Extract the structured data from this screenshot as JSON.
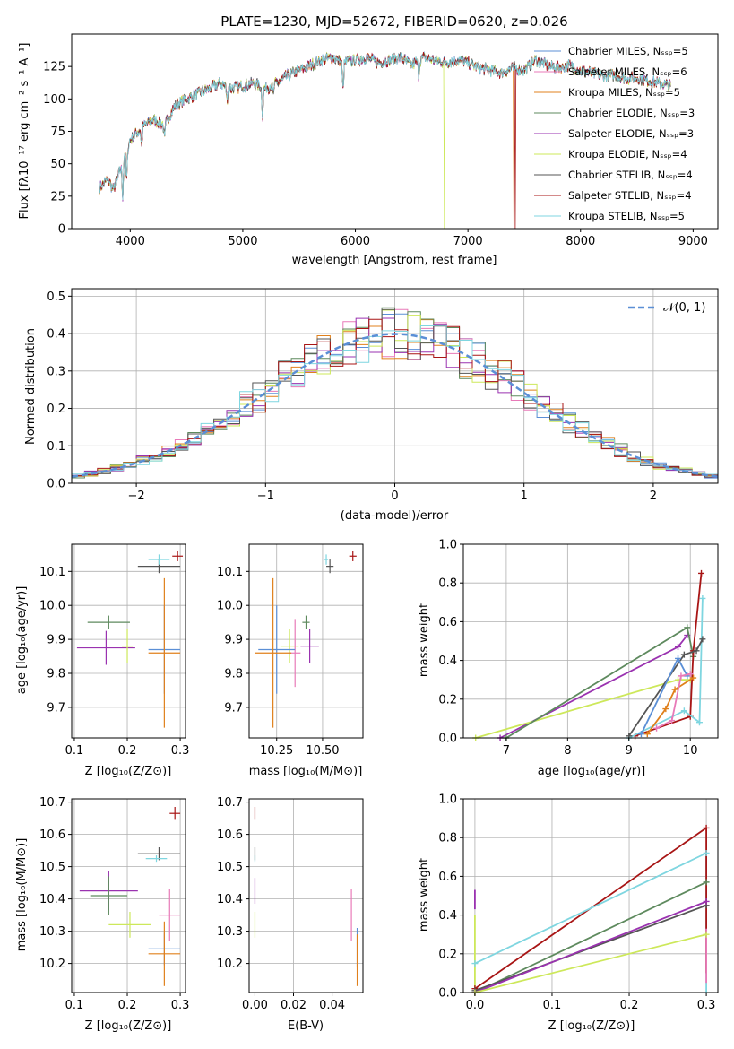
{
  "colors": {
    "Chabrier MILES": "#5b8fd6",
    "Salpeter MILES": "#e87ab8",
    "Kroupa MILES": "#e0801c",
    "Chabrier ELODIE": "#5e8a5e",
    "Salpeter ELODIE": "#9a32b0",
    "Kroupa ELODIE": "#cde85a",
    "Chabrier STELIB": "#555555",
    "Salpeter STELIB": "#a81515",
    "Kroupa STELIB": "#7fd6e0"
  },
  "chart_data": [
    {
      "id": "spectrum",
      "type": "line",
      "title": "PLATE=1230, MJD=52672, FIBERID=0620, z=0.026",
      "xlabel": "wavelength [Angstrom, rest frame]",
      "ylabel": "Flux [fλ10⁻¹⁷ erg cm⁻² s⁻¹ A⁻¹]",
      "xlim": [
        3480,
        9220
      ],
      "ylim": [
        0,
        150
      ],
      "xticks": [
        4000,
        5000,
        6000,
        7000,
        8000,
        9000
      ],
      "yticks": [
        0,
        25,
        50,
        75,
        100,
        125
      ],
      "grid": false,
      "legend_position": "right",
      "continuum": [
        [
          3730,
          32
        ],
        [
          3800,
          38
        ],
        [
          3850,
          30
        ],
        [
          3900,
          42
        ],
        [
          3950,
          58
        ],
        [
          4000,
          68
        ],
        [
          4100,
          78
        ],
        [
          4200,
          84
        ],
        [
          4300,
          80
        ],
        [
          4400,
          95
        ],
        [
          4500,
          100
        ],
        [
          4600,
          104
        ],
        [
          4700,
          108
        ],
        [
          4800,
          112
        ],
        [
          4900,
          108
        ],
        [
          5000,
          110
        ],
        [
          5100,
          112
        ],
        [
          5200,
          108
        ],
        [
          5300,
          112
        ],
        [
          5400,
          118
        ],
        [
          5500,
          122
        ],
        [
          5600,
          126
        ],
        [
          5700,
          130
        ],
        [
          5800,
          132
        ],
        [
          5900,
          128
        ],
        [
          6000,
          130
        ],
        [
          6100,
          132
        ],
        [
          6200,
          128
        ],
        [
          6300,
          130
        ],
        [
          6400,
          132
        ],
        [
          6500,
          126
        ],
        [
          6600,
          132
        ],
        [
          6700,
          130
        ],
        [
          6800,
          128
        ],
        [
          6900,
          130
        ],
        [
          7000,
          128
        ],
        [
          7100,
          124
        ],
        [
          7200,
          122
        ],
        [
          7300,
          120
        ],
        [
          7400,
          124
        ],
        [
          7500,
          122
        ],
        [
          7600,
          130
        ],
        [
          7700,
          126
        ],
        [
          7800,
          124
        ],
        [
          7900,
          126
        ],
        [
          8000,
          122
        ],
        [
          8100,
          120
        ],
        [
          8200,
          118
        ],
        [
          8300,
          118
        ],
        [
          8400,
          116
        ],
        [
          8500,
          116
        ],
        [
          8600,
          114
        ],
        [
          8700,
          112
        ],
        [
          8800,
          110
        ]
      ],
      "absorption": [
        [
          3933,
          28
        ],
        [
          3968,
          25
        ],
        [
          4101,
          14
        ],
        [
          4305,
          12
        ],
        [
          4861,
          10
        ],
        [
          5175,
          22
        ],
        [
          5270,
          8
        ],
        [
          5890,
          22
        ],
        [
          6563,
          12
        ]
      ],
      "series": [
        {
          "name": "Chabrier MILES, Nₛₛₚ=5",
          "drop_at": null
        },
        {
          "name": "Salpeter MILES, Nₛₛₚ=6",
          "drop_at": null
        },
        {
          "name": "Kroupa MILES, Nₛₛₚ=5",
          "drop_at": 7410
        },
        {
          "name": "Chabrier ELODIE, Nₛₛₚ=3",
          "drop_at": null
        },
        {
          "name": "Salpeter ELODIE, Nₛₛₚ=3",
          "drop_at": null
        },
        {
          "name": "Kroupa ELODIE, Nₛₛₚ=4",
          "drop_at": 6790
        },
        {
          "name": "Chabrier STELIB, Nₛₛₚ=4",
          "drop_at": null
        },
        {
          "name": "Salpeter STELIB, Nₛₛₚ=4",
          "drop_at": 7420
        },
        {
          "name": "Kroupa STELIB, Nₛₛₚ=5",
          "drop_at": null
        }
      ]
    },
    {
      "id": "residual-hist",
      "type": "bar",
      "xlabel": "(data-model)/error",
      "ylabel": "Normed distribution",
      "xlim": [
        -2.5,
        2.5
      ],
      "ylim": [
        0,
        0.52
      ],
      "xticks": [
        -2,
        -1,
        0,
        1,
        2
      ],
      "yticks": [
        0.0,
        0.1,
        0.2,
        0.3,
        0.4,
        0.5
      ],
      "grid": true,
      "bin_width": 0.1,
      "reference": {
        "name": "𝒩(0, 1)",
        "mean": 0,
        "sigma": 1
      },
      "legend_position": "top-right"
    },
    {
      "id": "age-vs-Z",
      "type": "scatter",
      "xlabel": "Z [log₁₀(Z/Z⊙)]",
      "ylabel": "age  [log₁₀(age/yr)]",
      "xlim": [
        0.095,
        0.31
      ],
      "ylim": [
        9.61,
        10.18
      ],
      "xticks": [
        0.1,
        0.2,
        0.3
      ],
      "yticks": [
        9.7,
        9.8,
        9.9,
        10.0,
        10.1
      ],
      "grid": true,
      "points": [
        {
          "series": "Chabrier STELIB",
          "x": 0.26,
          "y": 10.115,
          "xerr": 0.04,
          "yerr": 0.02
        },
        {
          "series": "Kroupa STELIB",
          "x": 0.26,
          "y": 10.135,
          "xerr": 0.02,
          "yerr": 0.015
        },
        {
          "series": "Salpeter STELIB",
          "x": 0.295,
          "y": 10.145,
          "xerr": 0.01,
          "yerr": 0.015
        },
        {
          "series": "Chabrier ELODIE",
          "x": 0.165,
          "y": 9.95,
          "xerr": 0.04,
          "yerr": 0.02
        },
        {
          "series": "Salpeter ELODIE",
          "x": 0.16,
          "y": 9.875,
          "xerr": 0.055,
          "yerr": 0.05
        },
        {
          "series": "Kroupa ELODIE",
          "x": 0.2,
          "y": 9.88,
          "xerr": 0.01,
          "yerr": 0.05
        },
        {
          "series": "Chabrier MILES",
          "x": 0.27,
          "y": 9.87,
          "xerr": 0.03,
          "yerr": 0.13
        },
        {
          "series": "Kroupa MILES",
          "x": 0.27,
          "y": 9.86,
          "xerr": 0.03,
          "yerr": 0.22
        }
      ]
    },
    {
      "id": "age-vs-mass",
      "type": "scatter",
      "xlabel": "mass [log₁₀(M/M⊙)]",
      "ylabel": "",
      "xlim": [
        10.1,
        10.72
      ],
      "ylim": [
        9.61,
        10.18
      ],
      "xticks": [
        10.25,
        10.5
      ],
      "yticks": [
        9.7,
        9.8,
        9.9,
        10.0,
        10.1
      ],
      "grid": true,
      "points": [
        {
          "series": "Kroupa STELIB",
          "x": 10.52,
          "y": 10.135,
          "xerr": 0.01,
          "yerr": 0.015
        },
        {
          "series": "Chabrier STELIB",
          "x": 10.54,
          "y": 10.115,
          "xerr": 0.02,
          "yerr": 0.02
        },
        {
          "series": "Salpeter STELIB",
          "x": 10.665,
          "y": 10.145,
          "xerr": 0.02,
          "yerr": 0.015
        },
        {
          "series": "Chabrier ELODIE",
          "x": 10.41,
          "y": 9.95,
          "xerr": 0.02,
          "yerr": 0.02
        },
        {
          "series": "Salpeter ELODIE",
          "x": 10.43,
          "y": 9.88,
          "xerr": 0.05,
          "yerr": 0.05
        },
        {
          "series": "Kroupa ELODIE",
          "x": 10.32,
          "y": 9.88,
          "xerr": 0.05,
          "yerr": 0.05
        },
        {
          "series": "Salpeter MILES",
          "x": 10.35,
          "y": 9.86,
          "xerr": 0.03,
          "yerr": 0.1
        },
        {
          "series": "Chabrier MILES",
          "x": 10.25,
          "y": 9.87,
          "xerr": 0.1,
          "yerr": 0.13
        },
        {
          "series": "Kroupa MILES",
          "x": 10.23,
          "y": 9.86,
          "xerr": 0.1,
          "yerr": 0.22
        }
      ]
    },
    {
      "id": "mass-weight-vs-age",
      "type": "line",
      "xlabel": "age  [log₁₀(age/yr)]",
      "ylabel": "mass weight",
      "xlim": [
        6.3,
        10.45
      ],
      "ylim": [
        0,
        1.0
      ],
      "xticks": [
        7,
        8,
        9,
        10
      ],
      "yticks": [
        0.0,
        0.2,
        0.4,
        0.6,
        0.8,
        1.0
      ],
      "grid": true,
      "series": [
        {
          "series": "Salpeter ELODIE",
          "points": [
            [
              6.9,
              0.0
            ],
            [
              9.8,
              0.47
            ],
            [
              9.95,
              0.53
            ]
          ]
        },
        {
          "series": "Kroupa ELODIE",
          "points": [
            [
              6.5,
              0.0
            ],
            [
              9.8,
              0.3
            ],
            [
              10.0,
              0.3
            ]
          ]
        },
        {
          "series": "Chabrier ELODIE",
          "points": [
            [
              7.0,
              0.0
            ],
            [
              9.95,
              0.57
            ],
            [
              10.05,
              0.42
            ]
          ]
        },
        {
          "series": "Salpeter STELIB",
          "points": [
            [
              9.1,
              0.01
            ],
            [
              10.0,
              0.11
            ],
            [
              10.05,
              0.45
            ],
            [
              10.18,
              0.85
            ]
          ]
        },
        {
          "series": "Kroupa STELIB",
          "points": [
            [
              9.0,
              0.0
            ],
            [
              9.9,
              0.14
            ],
            [
              10.15,
              0.08
            ],
            [
              10.2,
              0.72
            ]
          ]
        },
        {
          "series": "Chabrier STELIB",
          "points": [
            [
              9.0,
              0.01
            ],
            [
              9.9,
              0.43
            ],
            [
              10.1,
              0.45
            ],
            [
              10.2,
              0.51
            ]
          ]
        },
        {
          "series": "Chabrier MILES",
          "points": [
            [
              9.2,
              0.02
            ],
            [
              9.8,
              0.41
            ],
            [
              9.95,
              0.32
            ]
          ]
        },
        {
          "series": "Kroupa MILES",
          "points": [
            [
              9.3,
              0.02
            ],
            [
              9.6,
              0.15
            ],
            [
              9.75,
              0.25
            ],
            [
              10.05,
              0.31
            ]
          ]
        },
        {
          "series": "Salpeter MILES",
          "points": [
            [
              9.45,
              0.05
            ],
            [
              9.7,
              0.09
            ],
            [
              9.85,
              0.32
            ],
            [
              10.0,
              0.33
            ]
          ]
        }
      ]
    },
    {
      "id": "mass-vs-Z",
      "type": "scatter",
      "xlabel": "Z [log₁₀(Z/Z⊙)]",
      "ylabel": "mass [log₁₀(M/M⊙)]",
      "xlim": [
        0.095,
        0.31
      ],
      "ylim": [
        10.11,
        10.71
      ],
      "xticks": [
        0.1,
        0.2,
        0.3
      ],
      "yticks": [
        10.2,
        10.3,
        10.4,
        10.5,
        10.6,
        10.7
      ],
      "grid": true,
      "points": [
        {
          "series": "Salpeter STELIB",
          "x": 0.29,
          "y": 10.665,
          "xerr": 0.01,
          "yerr": 0.02
        },
        {
          "series": "Chabrier STELIB",
          "x": 0.26,
          "y": 10.54,
          "xerr": 0.04,
          "yerr": 0.02
        },
        {
          "series": "Kroupa STELIB",
          "x": 0.255,
          "y": 10.525,
          "xerr": 0.02,
          "yerr": 0.01
        },
        {
          "series": "Salpeter ELODIE",
          "x": 0.165,
          "y": 10.425,
          "xerr": 0.055,
          "yerr": 0.06
        },
        {
          "series": "Chabrier ELODIE",
          "x": 0.165,
          "y": 10.41,
          "xerr": 0.035,
          "yerr": 0.06
        },
        {
          "series": "Kroupa ELODIE",
          "x": 0.205,
          "y": 10.32,
          "xerr": 0.04,
          "yerr": 0.04
        },
        {
          "series": "Salpeter MILES",
          "x": 0.28,
          "y": 10.35,
          "xerr": 0.02,
          "yerr": 0.08
        },
        {
          "series": "Chabrier MILES",
          "x": 0.27,
          "y": 10.245,
          "xerr": 0.03,
          "yerr": 0.05
        },
        {
          "series": "Kroupa MILES",
          "x": 0.27,
          "y": 10.23,
          "xerr": 0.03,
          "yerr": 0.1
        }
      ]
    },
    {
      "id": "mass-vs-ebv",
      "type": "scatter",
      "xlabel": "E(B-V)",
      "ylabel": "",
      "xlim": [
        -0.003,
        0.056
      ],
      "ylim": [
        10.11,
        10.71
      ],
      "xticks": [
        0.0,
        0.02,
        0.04
      ],
      "xticklabels": [
        "0.00",
        "0.02",
        "0.04"
      ],
      "yticks": [
        10.2,
        10.3,
        10.4,
        10.5,
        10.6,
        10.7
      ],
      "grid": true,
      "points": [
        {
          "series": "Salpeter STELIB",
          "x": 0.0,
          "y": 10.665,
          "xerr": 0,
          "yerr": 0.02
        },
        {
          "series": "Chabrier STELIB",
          "x": 0.0,
          "y": 10.54,
          "xerr": 0,
          "yerr": 0.02
        },
        {
          "series": "Kroupa STELIB",
          "x": 0.0,
          "y": 10.525,
          "xerr": 0,
          "yerr": 0.01
        },
        {
          "series": "Salpeter ELODIE",
          "x": 0.0,
          "y": 10.425,
          "xerr": 0,
          "yerr": 0.04
        },
        {
          "series": "Kroupa ELODIE",
          "x": 0.0,
          "y": 10.32,
          "xerr": 0,
          "yerr": 0.04
        },
        {
          "series": "Salpeter MILES",
          "x": 0.05,
          "y": 10.35,
          "xerr": 0,
          "yerr": 0.08
        },
        {
          "series": "Chabrier MILES",
          "x": 0.053,
          "y": 10.25,
          "xerr": 0,
          "yerr": 0.06
        },
        {
          "series": "Kroupa MILES",
          "x": 0.053,
          "y": 10.21,
          "xerr": 0,
          "yerr": 0.08
        }
      ]
    },
    {
      "id": "mass-weight-vs-Z",
      "type": "line",
      "xlabel": "Z [log₁₀(Z/Z⊙)]",
      "ylabel": "mass weight",
      "xlim": [
        -0.015,
        0.315
      ],
      "ylim": [
        0,
        1.0
      ],
      "xticks": [
        0.0,
        0.1,
        0.2,
        0.3
      ],
      "xticklabels": [
        "0.0",
        "0.1",
        "0.2",
        "0.3"
      ],
      "yticks": [
        0.0,
        0.2,
        0.4,
        0.6,
        0.8,
        1.0
      ],
      "grid": true,
      "series": [
        {
          "series": "Salpeter STELIB",
          "points": [
            [
              0.0,
              0.02
            ],
            [
              0.3,
              0.85
            ]
          ]
        },
        {
          "series": "Kroupa STELIB",
          "points": [
            [
              0.0,
              0.15
            ],
            [
              0.3,
              0.72
            ]
          ]
        },
        {
          "series": "Chabrier ELODIE",
          "points": [
            [
              0.0,
              0.0
            ],
            [
              0.3,
              0.57
            ]
          ]
        },
        {
          "series": "Chabrier STELIB",
          "points": [
            [
              0.0,
              0.01
            ],
            [
              0.3,
              0.45
            ]
          ]
        },
        {
          "series": "Salpeter ELODIE",
          "points": [
            [
              0.0,
              0.0
            ],
            [
              0.3,
              0.47
            ]
          ]
        },
        {
          "series": "Kroupa ELODIE",
          "points": [
            [
              0.0,
              0.0
            ],
            [
              0.3,
              0.3
            ]
          ]
        }
      ],
      "vertical_bars": [
        {
          "series": "Salpeter ELODIE",
          "x": 0.0,
          "y0": 0.43,
          "y1": 0.53
        },
        {
          "series": "Kroupa ELODIE",
          "x": 0.0,
          "y0": 0.0,
          "y1": 0.4
        },
        {
          "series": "Kroupa STELIB",
          "x": 0.3,
          "y0": 0.0,
          "y1": 0.72
        },
        {
          "series": "Salpeter STELIB",
          "x": 0.3,
          "y0": 0.1,
          "y1": 0.85
        },
        {
          "series": "Salpeter MILES",
          "x": 0.3,
          "y0": 0.05,
          "y1": 0.33
        }
      ]
    }
  ]
}
